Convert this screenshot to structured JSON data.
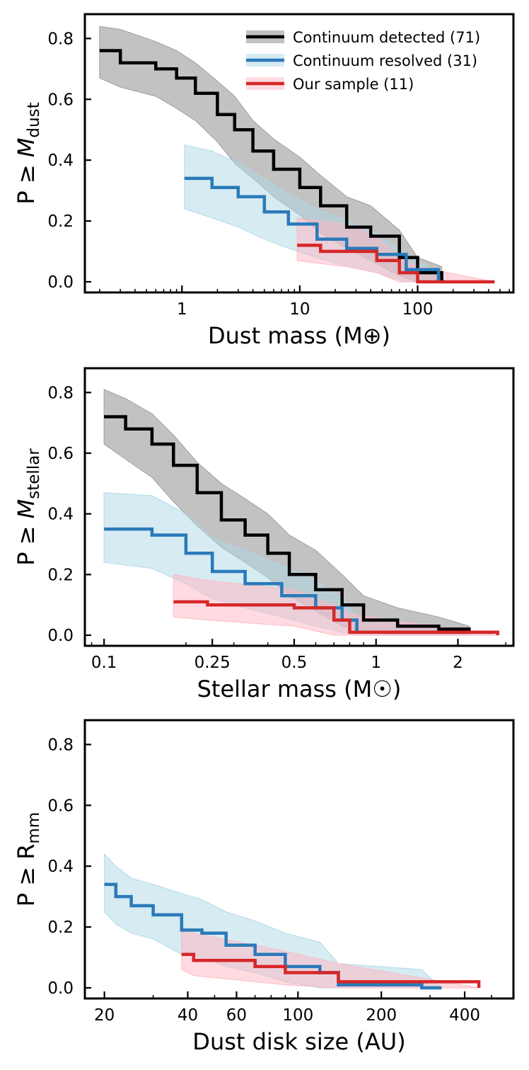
{
  "colors": {
    "detected": "#000000",
    "resolved": "#2a7ab9",
    "sample": "#d62728",
    "detected_band": "#999999",
    "resolved_band": "#add8e6",
    "sample_band": "#ffb6c1"
  },
  "legend": [
    {
      "key": "detected",
      "label": "Continuum detected (71)"
    },
    {
      "key": "resolved",
      "label": "Continuum resolved (31)"
    },
    {
      "key": "sample",
      "label": "Our sample (11)"
    }
  ],
  "chart_data": [
    {
      "type": "line",
      "xscale": "log",
      "xlabel": "Dust mass (M⊕)",
      "ylabel_main": "P ≥ ",
      "ylabel_var": "M",
      "ylabel_sub": "dust",
      "xlim": [
        0.15,
        650
      ],
      "ylim": [
        -0.035,
        0.88
      ],
      "xticks": [
        1,
        10,
        100
      ],
      "xticklabels": [
        "1",
        "10",
        "100"
      ],
      "yticks": [
        0,
        0.2,
        0.4,
        0.6,
        0.8
      ],
      "yticklabels": [
        "0.0",
        "0.2",
        "0.4",
        "0.6",
        "0.8"
      ],
      "series": [
        {
          "key": "detected",
          "x": [
            0.2,
            0.3,
            0.6,
            0.9,
            1.3,
            2,
            2.8,
            4,
            6,
            10,
            15,
            25,
            40,
            70,
            100,
            160
          ],
          "y": [
            0.76,
            0.72,
            0.7,
            0.67,
            0.62,
            0.55,
            0.5,
            0.43,
            0.37,
            0.31,
            0.25,
            0.18,
            0.15,
            0.08,
            0.03,
            0.0
          ],
          "upper": [
            0.84,
            0.83,
            0.79,
            0.76,
            0.72,
            0.66,
            0.61,
            0.53,
            0.47,
            0.41,
            0.35,
            0.28,
            0.25,
            0.17,
            0.08,
            0.05
          ],
          "lower": [
            0.67,
            0.64,
            0.61,
            0.57,
            0.53,
            0.46,
            0.39,
            0.34,
            0.28,
            0.22,
            0.16,
            0.11,
            0.07,
            0.02,
            0.0,
            0.0
          ]
        },
        {
          "key": "resolved",
          "x": [
            1.05,
            1.8,
            3,
            5,
            8,
            14,
            25,
            45,
            80,
            150
          ],
          "y": [
            0.34,
            0.31,
            0.28,
            0.23,
            0.19,
            0.14,
            0.11,
            0.09,
            0.04,
            0.0
          ],
          "upper": [
            0.45,
            0.43,
            0.39,
            0.34,
            0.29,
            0.24,
            0.2,
            0.16,
            0.09,
            0.03
          ],
          "lower": [
            0.24,
            0.21,
            0.18,
            0.14,
            0.11,
            0.08,
            0.05,
            0.03,
            0.0,
            0.0
          ]
        },
        {
          "key": "sample",
          "x": [
            9.5,
            15,
            25,
            45,
            70,
            100,
            450
          ],
          "y": [
            0.12,
            0.1,
            0.1,
            0.07,
            0.03,
            0.0,
            0.0
          ],
          "upper": [
            0.21,
            0.2,
            0.19,
            0.15,
            0.08,
            0.05,
            0.0
          ],
          "lower": [
            0.07,
            0.06,
            0.05,
            0.03,
            0.0,
            0.0,
            0.0
          ]
        }
      ]
    },
    {
      "type": "line",
      "xscale": "log",
      "xlabel": "Stellar mass (M☉)",
      "ylabel_main": "P ≥ ",
      "ylabel_var": "M",
      "ylabel_sub": "stellar",
      "xlim": [
        0.085,
        3.2
      ],
      "ylim": [
        -0.035,
        0.88
      ],
      "xticks": [
        0.1,
        0.25,
        0.5,
        1,
        2
      ],
      "xticklabels": [
        "0.1",
        "0.25",
        "0.5",
        "1",
        "2"
      ],
      "yticks": [
        0,
        0.2,
        0.4,
        0.6,
        0.8
      ],
      "yticklabels": [
        "0.0",
        "0.2",
        "0.4",
        "0.6",
        "0.8"
      ],
      "series": [
        {
          "key": "detected",
          "x": [
            0.1,
            0.12,
            0.15,
            0.18,
            0.22,
            0.27,
            0.33,
            0.4,
            0.48,
            0.6,
            0.75,
            0.9,
            1.2,
            1.7,
            2.2
          ],
          "y": [
            0.72,
            0.68,
            0.63,
            0.56,
            0.47,
            0.38,
            0.33,
            0.27,
            0.2,
            0.15,
            0.1,
            0.05,
            0.03,
            0.02,
            0.01
          ],
          "upper": [
            0.81,
            0.78,
            0.73,
            0.66,
            0.57,
            0.5,
            0.45,
            0.4,
            0.33,
            0.28,
            0.2,
            0.13,
            0.09,
            0.06,
            0.03
          ],
          "lower": [
            0.63,
            0.58,
            0.52,
            0.44,
            0.36,
            0.29,
            0.24,
            0.19,
            0.13,
            0.08,
            0.03,
            0.01,
            0.0,
            0.0,
            0.0
          ]
        },
        {
          "key": "resolved",
          "x": [
            0.1,
            0.15,
            0.2,
            0.25,
            0.33,
            0.45,
            0.6,
            0.75,
            0.85,
            2.8
          ],
          "y": [
            0.35,
            0.33,
            0.27,
            0.21,
            0.17,
            0.13,
            0.09,
            0.05,
            0.01,
            0.0
          ],
          "upper": [
            0.47,
            0.46,
            0.4,
            0.32,
            0.28,
            0.23,
            0.18,
            0.12,
            0.06,
            0.0
          ],
          "lower": [
            0.24,
            0.22,
            0.17,
            0.12,
            0.09,
            0.06,
            0.03,
            0.01,
            0.0,
            0.0
          ]
        },
        {
          "key": "sample",
          "x": [
            0.18,
            0.24,
            0.5,
            0.7,
            0.8,
            2.8
          ],
          "y": [
            0.11,
            0.1,
            0.09,
            0.05,
            0.01,
            0.0
          ],
          "upper": [
            0.2,
            0.18,
            0.15,
            0.1,
            0.07,
            0.0
          ],
          "lower": [
            0.06,
            0.05,
            0.03,
            0.0,
            0.0,
            0.0
          ]
        }
      ]
    },
    {
      "type": "line",
      "xscale": "log",
      "xlabel": "Dust disk size (AU)",
      "ylabel_main": "P ≥ ",
      "ylabel_var": "R",
      "ylabel_sub": "mm",
      "xlim": [
        17,
        600
      ],
      "ylim": [
        -0.035,
        0.88
      ],
      "xticks": [
        20,
        40,
        60,
        100,
        200,
        400
      ],
      "xticklabels": [
        "20",
        "40",
        "60",
        "100",
        "200",
        "400"
      ],
      "yticks": [
        0,
        0.2,
        0.4,
        0.6,
        0.8
      ],
      "yticklabels": [
        "0.0",
        "0.2",
        "0.4",
        "0.6",
        "0.8"
      ],
      "series": [
        {
          "key": "resolved",
          "x": [
            20,
            22,
            25,
            30,
            38,
            45,
            55,
            70,
            90,
            120,
            140,
            280,
            330
          ],
          "y": [
            0.34,
            0.3,
            0.27,
            0.24,
            0.19,
            0.18,
            0.14,
            0.11,
            0.07,
            0.05,
            0.01,
            0.0,
            0.0
          ],
          "upper": [
            0.44,
            0.4,
            0.36,
            0.34,
            0.31,
            0.29,
            0.25,
            0.22,
            0.18,
            0.15,
            0.08,
            0.06,
            0.0
          ],
          "lower": [
            0.25,
            0.21,
            0.18,
            0.16,
            0.11,
            0.1,
            0.07,
            0.05,
            0.02,
            0.0,
            0.0,
            0.0,
            0.0
          ]
        },
        {
          "key": "sample",
          "x": [
            38,
            42,
            70,
            90,
            140,
            450
          ],
          "y": [
            0.11,
            0.09,
            0.07,
            0.05,
            0.02,
            0.0
          ],
          "upper": [
            0.2,
            0.18,
            0.14,
            0.12,
            0.08,
            0.0
          ],
          "lower": [
            0.06,
            0.04,
            0.02,
            0.01,
            0.0,
            0.0
          ]
        }
      ]
    }
  ]
}
